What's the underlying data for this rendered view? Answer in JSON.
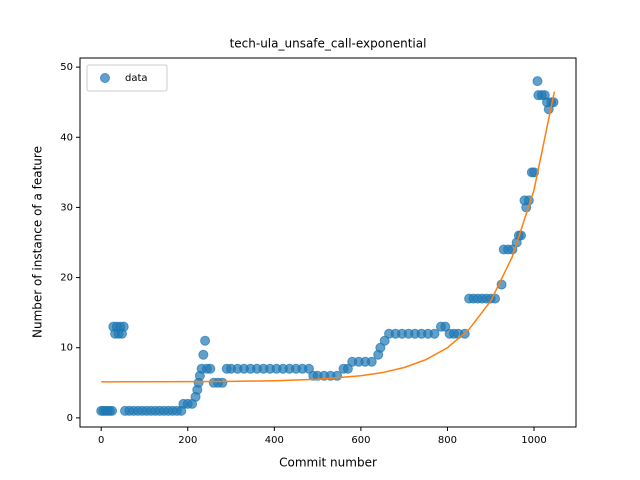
{
  "chart_data": {
    "type": "scatter",
    "title": "tech-ula_unsafe_call-exponential",
    "xlabel": "Commit number",
    "ylabel": "Number of instance of a feature",
    "xlim": [
      -49,
      1097
    ],
    "ylim": [
      -1.3,
      51.3
    ],
    "xticks": [
      0,
      200,
      400,
      600,
      800,
      1000
    ],
    "yticks": [
      0,
      10,
      20,
      30,
      40,
      50
    ],
    "legend": "upper left",
    "series": [
      {
        "name": "data",
        "type": "scatter",
        "color": "#1f77b4",
        "x": [
          0,
          5,
          10,
          15,
          20,
          25,
          28,
          32,
          36,
          40,
          44,
          48,
          52,
          55,
          65,
          75,
          85,
          95,
          105,
          115,
          125,
          135,
          145,
          155,
          165,
          175,
          185,
          190,
          200,
          210,
          218,
          222,
          225,
          228,
          232,
          236,
          240,
          244,
          252,
          260,
          270,
          280,
          290,
          300,
          315,
          330,
          345,
          360,
          375,
          390,
          405,
          420,
          435,
          450,
          465,
          480,
          490,
          500,
          515,
          530,
          545,
          560,
          570,
          580,
          595,
          610,
          625,
          640,
          645,
          655,
          665,
          680,
          695,
          710,
          725,
          740,
          755,
          770,
          785,
          795,
          805,
          815,
          825,
          840,
          850,
          860,
          870,
          880,
          890,
          900,
          910,
          925,
          930,
          940,
          950,
          960,
          965,
          970,
          978,
          982,
          988,
          995,
          1000,
          1008,
          1010,
          1018,
          1025,
          1030,
          1034,
          1040,
          1045
        ],
        "values": [
          1,
          1,
          1,
          1,
          1,
          1,
          13,
          12,
          13,
          12,
          13,
          12,
          13,
          1,
          1,
          1,
          1,
          1,
          1,
          1,
          1,
          1,
          1,
          1,
          1,
          1,
          1,
          2,
          2,
          2,
          3,
          4,
          5,
          6,
          7,
          9,
          11,
          7,
          7,
          5,
          5,
          5,
          7,
          7,
          7,
          7,
          7,
          7,
          7,
          7,
          7,
          7,
          7,
          7,
          7,
          7,
          6,
          6,
          6,
          6,
          6,
          7,
          7,
          8,
          8,
          8,
          8,
          9,
          10,
          11,
          12,
          12,
          12,
          12,
          12,
          12,
          12,
          12,
          13,
          13,
          12,
          12,
          12,
          12,
          17,
          17,
          17,
          17,
          17,
          17,
          17,
          19,
          24,
          24,
          24,
          25,
          26,
          26,
          31,
          30,
          31,
          35,
          35,
          48,
          46,
          46,
          46,
          45,
          44,
          45,
          45
        ]
      },
      {
        "type": "line",
        "color": "#ff7f0e",
        "x": [
          0,
          100,
          200,
          300,
          400,
          500,
          600,
          650,
          700,
          750,
          800,
          850,
          900,
          950,
          1000,
          1047
        ],
        "values": [
          5.14,
          5.15,
          5.16,
          5.2,
          5.29,
          5.5,
          6.0,
          6.46,
          7.18,
          8.3,
          10.0,
          12.63,
          16.66,
          22.99,
          32.5,
          46.5
        ]
      }
    ]
  }
}
